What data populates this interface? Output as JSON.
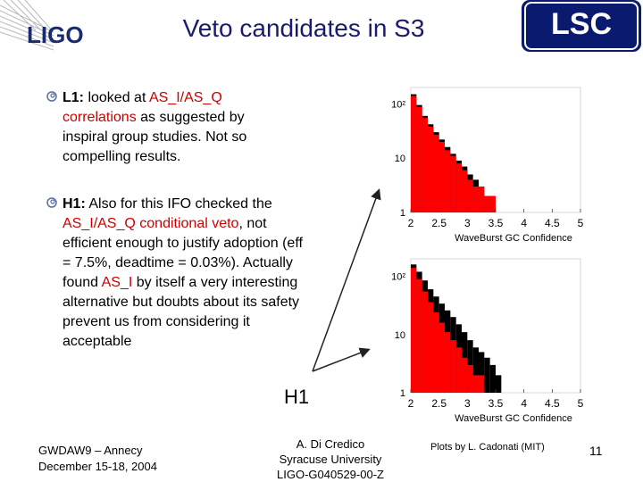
{
  "header": {
    "ligo_logo_text": "LIGO",
    "title": "Veto candidates in S3",
    "lsc_logo_text": "LSC",
    "colors": {
      "title": "#1a1a6e",
      "highlight": "#cc0000",
      "logo_bg": "#0a1a6e"
    }
  },
  "bullets": [
    {
      "icon": "spiral-bullet-icon",
      "lead": "L1:",
      "segments": [
        {
          "text": " looked at ",
          "style": "plain"
        },
        {
          "text": "AS_I/AS_Q correlations",
          "style": "red"
        },
        {
          "text": " as suggested by inspiral group studies. Not so compelling results.",
          "style": "plain"
        }
      ]
    },
    {
      "icon": "spiral-bullet-icon",
      "lead": "H1:",
      "segments": [
        {
          "text": " Also for this IFO checked the ",
          "style": "plain"
        },
        {
          "text": "AS_I/AS_Q conditional veto",
          "style": "red"
        },
        {
          "text": ", not efficient enough to justify adoption (eff = 7.5%, deadtime = 0.03%). Actually found ",
          "style": "plain"
        },
        {
          "text": "AS_I",
          "style": "red"
        },
        {
          "text": "  by itself a very interesting alternative but doubts about its safety prevent us from considering it acceptable",
          "style": "plain"
        }
      ]
    }
  ],
  "chart_data": [
    {
      "type": "bar",
      "xlabel": "WaveBurst GC Confidence",
      "ylabel": "",
      "x_ticks": [
        "2",
        "2.5",
        "3",
        "3.5",
        "4",
        "4.5",
        "5"
      ],
      "y_ticks": [
        "1",
        "10",
        "10²"
      ],
      "yscale": "log",
      "xlim": [
        2,
        5
      ],
      "ylim": [
        1,
        200
      ],
      "grid": false,
      "series": [
        {
          "color": "#000000",
          "bins": [
            2.0,
            2.1,
            2.2,
            2.3,
            2.4,
            2.5,
            2.6,
            2.7,
            2.8,
            2.9,
            3.0,
            3.1,
            3.2,
            3.3,
            3.4,
            3.5,
            3.6
          ],
          "values": [
            150,
            95,
            60,
            42,
            30,
            22,
            16,
            12,
            9,
            7,
            5,
            4,
            3,
            2,
            2,
            1,
            1
          ]
        },
        {
          "color": "#ff0000",
          "bins": [
            2.0,
            2.1,
            2.2,
            2.3,
            2.4,
            2.5,
            2.6,
            2.7,
            2.8,
            2.9,
            3.0,
            3.1,
            3.2,
            3.3,
            3.4,
            3.5,
            3.6
          ],
          "values": [
            140,
            88,
            55,
            38,
            27,
            20,
            14,
            11,
            8,
            6,
            4,
            3,
            3,
            2,
            2,
            1,
            1
          ]
        }
      ]
    },
    {
      "type": "bar",
      "xlabel": "WaveBurst GC Confidence",
      "ylabel": "",
      "x_ticks": [
        "2",
        "2.5",
        "3",
        "3.5",
        "4",
        "4.5",
        "5"
      ],
      "y_ticks": [
        "1",
        "10",
        "10²"
      ],
      "yscale": "log",
      "xlim": [
        2,
        5
      ],
      "ylim": [
        1,
        200
      ],
      "grid": false,
      "series": [
        {
          "color": "#000000",
          "bins": [
            2.0,
            2.1,
            2.2,
            2.3,
            2.4,
            2.5,
            2.6,
            2.7,
            2.8,
            2.9,
            3.0,
            3.1,
            3.2,
            3.3,
            3.4,
            3.5,
            3.6,
            3.7
          ],
          "values": [
            160,
            120,
            85,
            60,
            45,
            34,
            26,
            20,
            15,
            11,
            8,
            6,
            5,
            4,
            3,
            2,
            1,
            1
          ]
        },
        {
          "color": "#ff0000",
          "bins": [
            2.0,
            2.1,
            2.2,
            2.3,
            2.4,
            2.5,
            2.6,
            2.7,
            2.8,
            2.9,
            3.0,
            3.1,
            3.2,
            3.3,
            3.4,
            3.5
          ],
          "values": [
            140,
            90,
            55,
            36,
            24,
            16,
            11,
            8,
            6,
            4,
            3,
            2,
            2,
            1,
            1,
            1
          ]
        }
      ]
    }
  ],
  "annotation": {
    "h1_label": "H1"
  },
  "footer": {
    "left_line1": "GWDAW9 – Annecy",
    "left_line2": "December 15-18, 2004",
    "center_line1": "A. Di Credico",
    "center_line2": "Syracuse University",
    "center_line3": "LIGO-G040529-00-Z",
    "credit": "Plots by L. Cadonati (MIT)",
    "page_number": "11"
  }
}
